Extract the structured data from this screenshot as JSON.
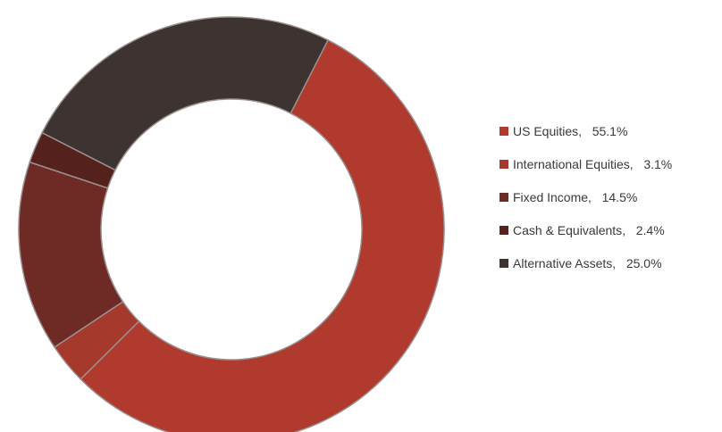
{
  "chart_data": {
    "type": "pie",
    "donut": true,
    "title": "",
    "legend_position": "right",
    "slices": [
      {
        "label": "US Equities",
        "value": 55.1,
        "value_label": "55.1%",
        "color": "#b03a2e"
      },
      {
        "label": "International Equities",
        "value": 3.1,
        "value_label": "3.1%",
        "color": "#a53a2c"
      },
      {
        "label": "Fixed Income",
        "value": 14.5,
        "value_label": "14.5%",
        "color": "#6e2b26"
      },
      {
        "label": "Cash & Equivalents",
        "value": 2.4,
        "value_label": "2.4%",
        "color": "#55211d"
      },
      {
        "label": "Alternative Assets",
        "value": 25.0,
        "value_label": "25.0%",
        "color": "#3d3330"
      }
    ]
  }
}
